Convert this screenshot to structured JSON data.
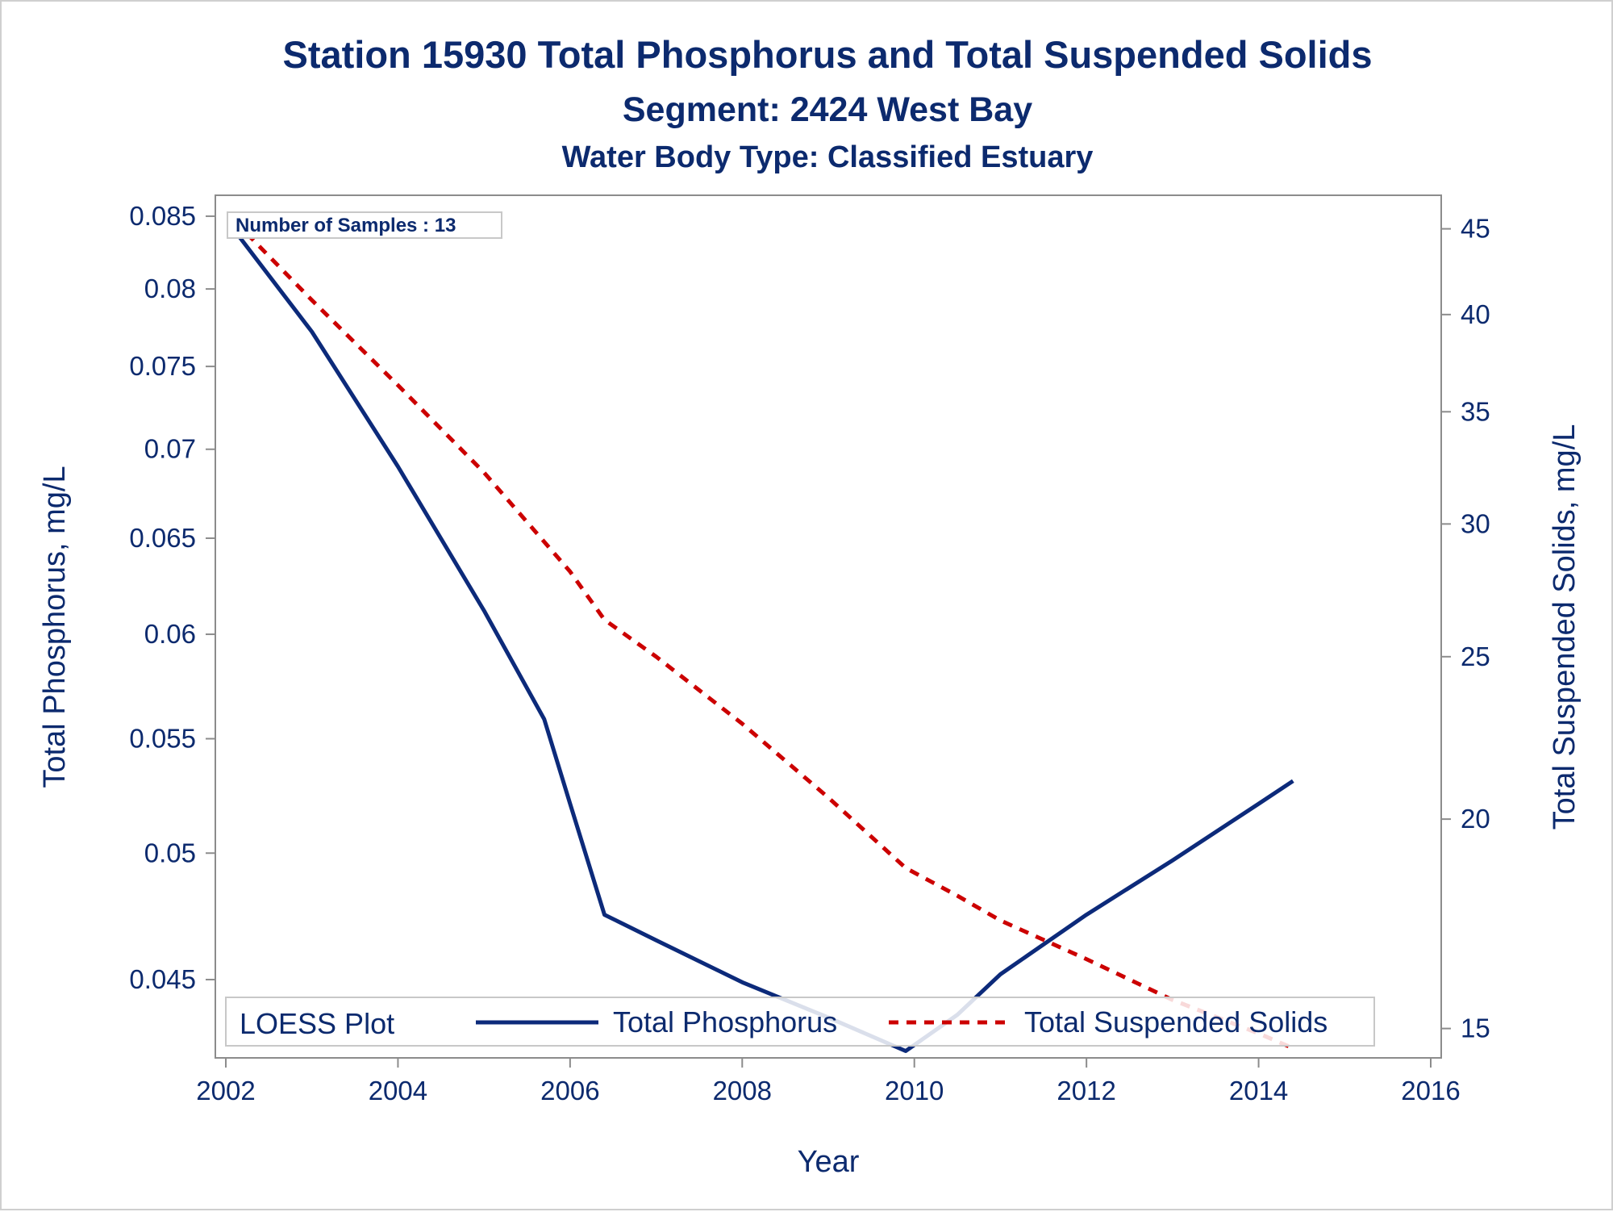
{
  "chart_data": {
    "type": "line",
    "title": "Station 15930  Total Phosphorus and Total Suspended Solids",
    "subtitle": "Segment: 2424  West Bay",
    "subtitle2": "Water Body Type: Classified Estuary",
    "xlabel": "Year",
    "ylabel_left": "Total Phosphorus, mg/L",
    "ylabel_right": "Total Suspended Solids, mg/L",
    "x_ticks": [
      "2002",
      "2004",
      "2006",
      "2008",
      "2010",
      "2012",
      "2014",
      "2016"
    ],
    "xlim": [
      2002,
      2016
    ],
    "y_left_scale": "log",
    "y_left_ticks": [
      "0.045",
      "0.05",
      "0.055",
      "0.06",
      "0.065",
      "0.07",
      "0.075",
      "0.08",
      "0.085"
    ],
    "y_left_lim": [
      0.0425,
      0.0858
    ],
    "y_right_scale": "log",
    "y_right_ticks": [
      "15",
      "20",
      "25",
      "30",
      "35",
      "40",
      "45"
    ],
    "y_right_lim": [
      14.6,
      46.5
    ],
    "inset_label": "Number of Samples : 13",
    "legend": {
      "title": "LOESS Plot",
      "position": "bottom",
      "entries": [
        "Total Phosphorus",
        "Total Suspended Solids"
      ]
    },
    "series": [
      {
        "name": "Total Phosphorus",
        "axis": "left",
        "color": "#0c2a7a",
        "style": "solid",
        "x": [
          2002.1,
          2003.0,
          2004.0,
          2005.0,
          2005.7,
          2006.0,
          2006.4,
          2007.0,
          2008.0,
          2009.0,
          2009.9,
          2010.5,
          2011.0,
          2012.0,
          2013.0,
          2014.0,
          2014.4
        ],
        "y": [
          0.084,
          0.0772,
          0.069,
          0.0612,
          0.0559,
          0.0521,
          0.0475,
          0.0465,
          0.0449,
          0.0436,
          0.0424,
          0.0437,
          0.0452,
          0.0475,
          0.0497,
          0.0521,
          0.0531
        ]
      },
      {
        "name": "Total Suspended Solids",
        "axis": "right",
        "color": "#cc0000",
        "style": "dashed",
        "x": [
          2002.1,
          2003.0,
          2004.0,
          2005.0,
          2006.0,
          2006.4,
          2007.0,
          2008.0,
          2009.0,
          2009.9,
          2010.5,
          2011.0,
          2012.0,
          2013.0,
          2014.0,
          2014.4
        ],
        "y": [
          45.5,
          40.8,
          36.3,
          32.2,
          28.1,
          26.3,
          25.0,
          22.8,
          20.6,
          18.7,
          18.0,
          17.4,
          16.5,
          15.6,
          14.9,
          14.6
        ]
      }
    ]
  }
}
